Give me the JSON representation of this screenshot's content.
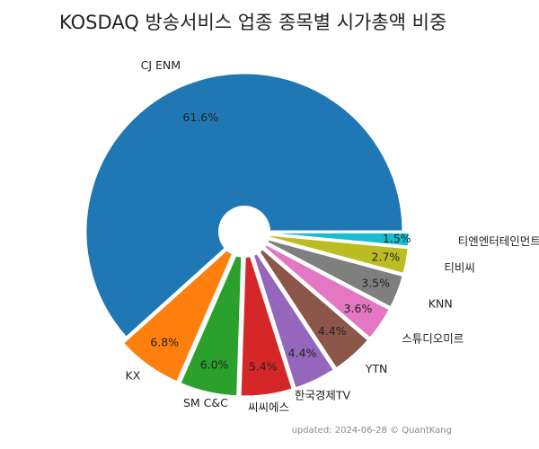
{
  "chart_data": {
    "type": "pie",
    "title": "KOSDAQ 방송서비스 업종 종목별 시가총액 비중",
    "footnote": "updated: 2024-06-28 © QuantKang",
    "slices": [
      {
        "label": "CJ ENM",
        "value": 61.6,
        "pct_label": "61.6%",
        "color": "#1f77b4"
      },
      {
        "label": "KX",
        "value": 6.8,
        "pct_label": "6.8%",
        "color": "#ff7f0e"
      },
      {
        "label": "SM C&C",
        "value": 6.0,
        "pct_label": "6.0%",
        "color": "#2ca02c"
      },
      {
        "label": "씨씨에스",
        "value": 5.4,
        "pct_label": "5.4%",
        "color": "#d62728"
      },
      {
        "label": "한국경제TV",
        "value": 4.4,
        "pct_label": "4.4%",
        "color": "#9467bd"
      },
      {
        "label": "YTN",
        "value": 4.4,
        "pct_label": "4.4%",
        "color": "#8c564b"
      },
      {
        "label": "스튜디오미르",
        "value": 3.6,
        "pct_label": "3.6%",
        "color": "#e377c2"
      },
      {
        "label": "KNN",
        "value": 3.5,
        "pct_label": "3.5%",
        "color": "#7f7f7f"
      },
      {
        "label": "티비씨",
        "value": 2.7,
        "pct_label": "2.7%",
        "color": "#bcbd22"
      },
      {
        "label": "티엔엔터테인먼트",
        "value": 1.5,
        "pct_label": "1.5%",
        "color": "#17becf"
      }
    ]
  }
}
